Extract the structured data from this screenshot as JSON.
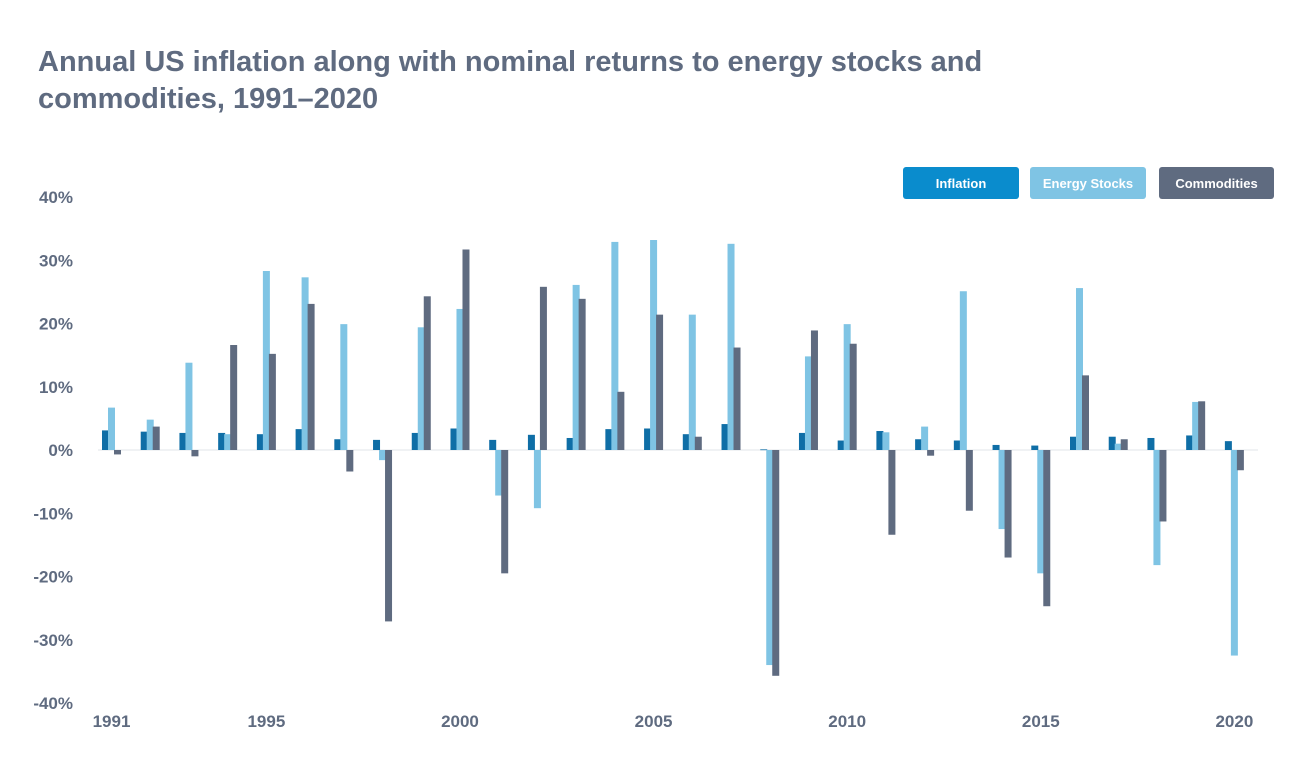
{
  "title": "Annual US inflation along with nominal returns to energy stocks and commodities, 1991–2020",
  "colors": {
    "inflation": "#0f6ea6",
    "energy": "#7fc4e4",
    "commodities": "#5f6b80",
    "inflation_chip": "#0a8ccd",
    "text": "#5f6b80",
    "zero_line": "#e2e5ea"
  },
  "chart_data": {
    "type": "bar",
    "title": "Annual US inflation along with nominal returns to energy stocks and commodities, 1991–2020",
    "xlabel": "",
    "ylabel": "",
    "ylim": [
      -40,
      40
    ],
    "y_ticks": [
      "40%",
      "30%",
      "20%",
      "10%",
      "0%",
      "-10%",
      "-20%",
      "-30%",
      "-40%"
    ],
    "y_tick_values": [
      40,
      30,
      20,
      10,
      0,
      -10,
      -20,
      -30,
      -40
    ],
    "x_tick_labels": [
      "1991",
      "1995",
      "2000",
      "2005",
      "2010",
      "2015",
      "2020"
    ],
    "categories": [
      1991,
      1992,
      1993,
      1994,
      1995,
      1996,
      1997,
      1998,
      1999,
      2000,
      2001,
      2002,
      2003,
      2004,
      2005,
      2006,
      2007,
      2008,
      2009,
      2010,
      2011,
      2012,
      2013,
      2014,
      2015,
      2016,
      2017,
      2018,
      2019,
      2020
    ],
    "legend": {
      "placement": "top-right"
    },
    "grid": false,
    "series": [
      {
        "name": "Inflation",
        "values": [
          3.1,
          2.9,
          2.7,
          2.7,
          2.5,
          3.3,
          1.7,
          1.6,
          2.7,
          3.4,
          1.6,
          2.4,
          1.9,
          3.3,
          3.4,
          2.5,
          4.1,
          0.1,
          2.7,
          1.5,
          3.0,
          1.7,
          1.5,
          0.8,
          0.7,
          2.1,
          2.1,
          1.9,
          2.3,
          1.4
        ]
      },
      {
        "name": "Energy Stocks",
        "values": [
          6.7,
          4.8,
          13.8,
          2.5,
          28.3,
          27.3,
          19.9,
          -1.6,
          19.4,
          22.3,
          -7.2,
          -9.2,
          26.1,
          32.9,
          33.2,
          21.4,
          32.6,
          -34.0,
          14.8,
          19.9,
          2.8,
          3.7,
          25.1,
          -12.5,
          -19.5,
          25.6,
          1.0,
          -18.2,
          7.6,
          -32.5
        ]
      },
      {
        "name": "Commodities",
        "values": [
          -0.7,
          3.7,
          -1.0,
          16.6,
          15.2,
          23.1,
          -3.4,
          -27.1,
          24.3,
          31.7,
          -19.5,
          25.8,
          23.9,
          9.2,
          21.4,
          2.1,
          16.2,
          -35.7,
          18.9,
          16.8,
          -13.4,
          -0.9,
          -9.6,
          -17.0,
          -24.7,
          11.8,
          1.7,
          -11.3,
          7.7,
          -3.2
        ]
      }
    ]
  }
}
